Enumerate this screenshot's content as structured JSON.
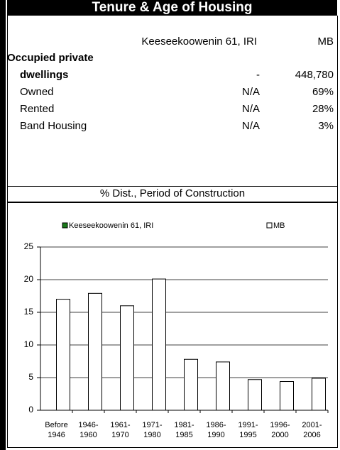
{
  "header": {
    "title": "Tenure & Age of Housing"
  },
  "table": {
    "columns": [
      "Keeseekoowenin 61, IRI",
      "MB"
    ],
    "rows": [
      {
        "label": "Occupied private",
        "bold": true
      },
      {
        "label": "dwellings",
        "bold": true,
        "indent": true,
        "values": [
          "-",
          "448,780"
        ]
      },
      {
        "label": "Owned",
        "indent": true,
        "values": [
          "N/A",
          "69%"
        ]
      },
      {
        "label": "Rented",
        "indent": true,
        "values": [
          "N/A",
          "28%"
        ]
      },
      {
        "label": "Band Housing",
        "indent": true,
        "values": [
          "N/A",
          "3%"
        ]
      }
    ]
  },
  "section": {
    "title": "% Dist., Period of Construction"
  },
  "chart_data": {
    "type": "bar",
    "categories": [
      "Before 1946",
      "1946- 1960",
      "1961- 1970",
      "1971- 1980",
      "1981- 1985",
      "1986- 1990",
      "1991- 1995",
      "1996- 2000",
      "2001- 2006"
    ],
    "series": [
      {
        "name": "Keeseekoowenin 61, IRI",
        "color": "#1a7a1a",
        "values": [
          null,
          null,
          null,
          null,
          null,
          null,
          null,
          null,
          null
        ]
      },
      {
        "name": "MB",
        "color": "#ffffff",
        "values": [
          17,
          17.9,
          16,
          20.1,
          7.8,
          7.4,
          4.7,
          4.4,
          4.9
        ]
      }
    ],
    "ylim": [
      0,
      25
    ],
    "yticks": [
      0,
      5,
      10,
      15,
      20,
      25
    ],
    "grid": true
  }
}
